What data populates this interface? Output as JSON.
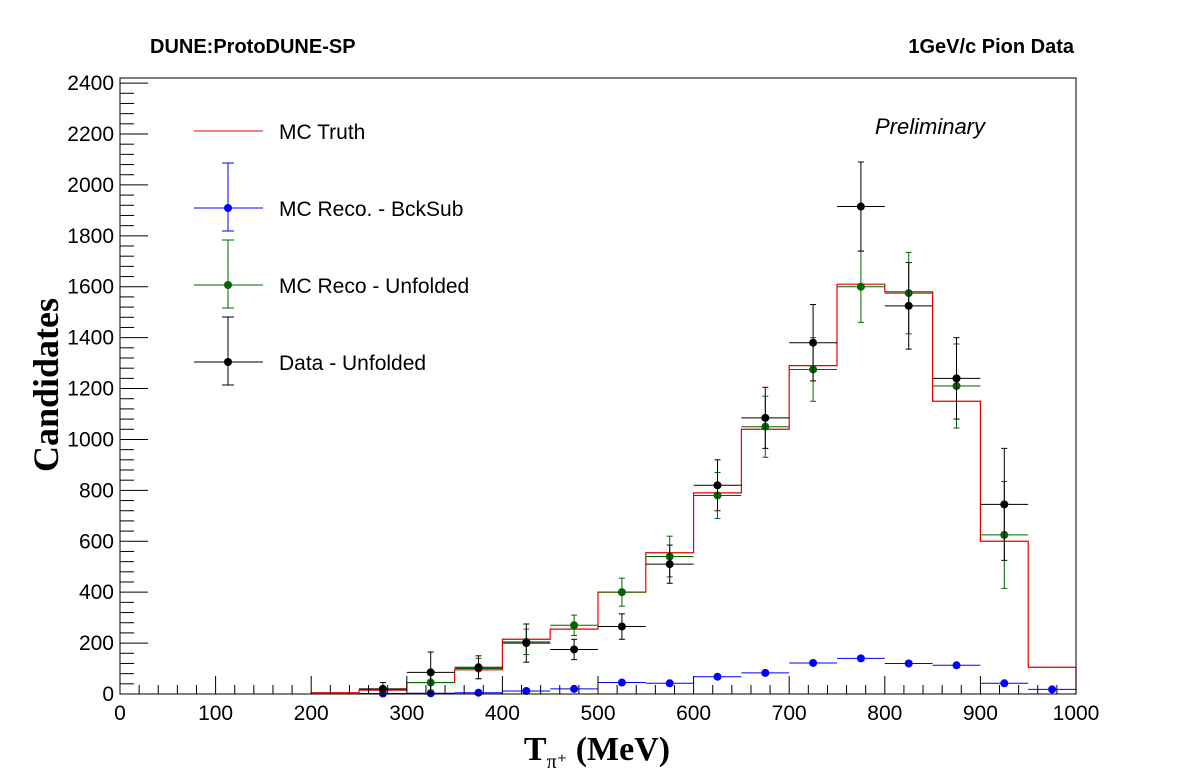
{
  "header": {
    "left": "DUNE:ProtoDUNE-SP",
    "right": "1GeV/c Pion Data"
  },
  "chart_data": {
    "type": "line",
    "annotation": "Preliminary",
    "xlabel": "T",
    "xlabel_sub": "π⁺",
    "xlabel_unit": " (MeV)",
    "ylabel": "Candidates",
    "xlim": [
      0,
      1000
    ],
    "ylim": [
      0,
      2420
    ],
    "x_ticks": [
      0,
      100,
      200,
      300,
      400,
      500,
      600,
      700,
      800,
      900,
      1000
    ],
    "y_ticks": [
      0,
      200,
      400,
      600,
      800,
      1000,
      1200,
      1400,
      1600,
      1800,
      2000,
      2200,
      2400
    ],
    "grid": false,
    "legend_position": "top-left",
    "bin_edges": [
      200,
      250,
      300,
      350,
      400,
      450,
      500,
      550,
      600,
      650,
      700,
      750,
      800,
      850,
      900,
      950,
      1000
    ],
    "series": [
      {
        "name": "MC Truth",
        "style": "step",
        "color": "#e60000",
        "values": [
          5,
          15,
          45,
          95,
          215,
          255,
          400,
          555,
          790,
          1040,
          1290,
          1610,
          1580,
          1150,
          600,
          105
        ]
      },
      {
        "name": "MC Reco. - BckSub",
        "style": "points",
        "color": "#0000ff",
        "x": [
          275,
          325,
          375,
          425,
          475,
          525,
          575,
          625,
          675,
          725,
          775,
          825,
          875,
          925,
          975
        ],
        "values": [
          2,
          3,
          5,
          12,
          20,
          45,
          42,
          68,
          83,
          122,
          140,
          120,
          113,
          42,
          18
        ],
        "errors": [
          1,
          1,
          2,
          3,
          4,
          5,
          5,
          6,
          7,
          8,
          9,
          8,
          8,
          5,
          3
        ]
      },
      {
        "name": "MC Reco - Unfolded",
        "style": "points",
        "color": "#006600",
        "x": [
          275,
          325,
          375,
          425,
          475,
          525,
          575,
          625,
          675,
          725,
          775,
          825,
          875,
          925
        ],
        "values": [
          18,
          45,
          100,
          205,
          270,
          400,
          540,
          780,
          1050,
          1275,
          1600,
          1575,
          1210,
          625
        ],
        "errors": [
          12,
          30,
          40,
          50,
          40,
          55,
          80,
          90,
          120,
          125,
          140,
          160,
          165,
          210
        ]
      },
      {
        "name": "Data - Unfolded",
        "style": "points",
        "color": "#000000",
        "x": [
          275,
          325,
          375,
          425,
          475,
          525,
          575,
          625,
          675,
          725,
          775,
          825,
          875,
          925
        ],
        "values": [
          20,
          85,
          105,
          200,
          175,
          265,
          510,
          820,
          1085,
          1380,
          1915,
          1525,
          1240,
          745
        ],
        "errors": [
          25,
          80,
          45,
          75,
          40,
          50,
          75,
          100,
          120,
          150,
          175,
          170,
          160,
          220
        ]
      }
    ]
  }
}
